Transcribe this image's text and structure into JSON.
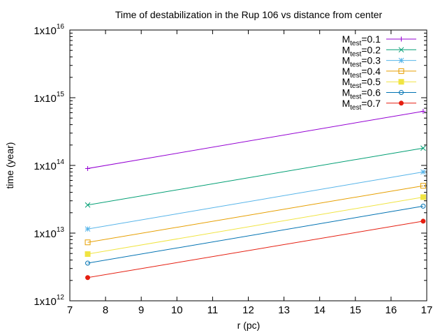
{
  "chart_data": {
    "type": "line",
    "title": "Time of destabilization in the Rup 106 vs distance from center",
    "xlabel": "r (pc)",
    "ylabel": "time (year)",
    "xlim": [
      7,
      17
    ],
    "ylim": [
      1000000000000.0,
      1e+16
    ],
    "yscale": "log",
    "grid": false,
    "legend_position": "top-right",
    "x_ticks": [
      7,
      8,
      9,
      10,
      11,
      12,
      13,
      14,
      15,
      16,
      17
    ],
    "x_tick_labels": [
      "7",
      "8",
      "9",
      "10",
      "11",
      "12",
      "13",
      "14",
      "15",
      "16",
      "17"
    ],
    "y_ticks": [
      {
        "value": 1000000000000.0,
        "base": "1x10",
        "exp": "12"
      },
      {
        "value": 10000000000000.0,
        "base": "1x10",
        "exp": "13"
      },
      {
        "value": 100000000000000.0,
        "base": "1x10",
        "exp": "14"
      },
      {
        "value": 1000000000000000.0,
        "base": "1x10",
        "exp": "15"
      },
      {
        "value": 1e+16,
        "base": "1x10",
        "exp": "16"
      }
    ],
    "series": [
      {
        "name": "M",
        "sub": "test",
        "suffix": "=0.1",
        "color": "#9400d3",
        "marker": "plus",
        "x": [
          7.5,
          16.9
        ],
        "y": [
          90000000000000.0,
          630000000000000.0
        ]
      },
      {
        "name": "M",
        "sub": "test",
        "suffix": "=0.2",
        "color": "#009e73",
        "marker": "cross",
        "x": [
          7.5,
          16.9
        ],
        "y": [
          26000000000000.0,
          180000000000000.0
        ]
      },
      {
        "name": "M",
        "sub": "test",
        "suffix": "=0.3",
        "color": "#56b4e9",
        "marker": "star",
        "x": [
          7.5,
          16.9
        ],
        "y": [
          11500000000000.0,
          80000000000000.0
        ]
      },
      {
        "name": "M",
        "sub": "test",
        "suffix": "=0.4",
        "color": "#e69f00",
        "marker": "open-square",
        "x": [
          7.5,
          16.9
        ],
        "y": [
          7300000000000.0,
          50000000000000.0
        ]
      },
      {
        "name": "M",
        "sub": "test",
        "suffix": "=0.5",
        "color": "#f0e442",
        "marker": "filled-square",
        "x": [
          7.5,
          16.9
        ],
        "y": [
          4900000000000.0,
          34000000000000.0
        ]
      },
      {
        "name": "M",
        "sub": "test",
        "suffix": "=0.6",
        "color": "#0072b2",
        "marker": "open-circle",
        "x": [
          7.5,
          16.9
        ],
        "y": [
          3600000000000.0,
          25000000000000.0
        ]
      },
      {
        "name": "M",
        "sub": "test",
        "suffix": "=0.7",
        "color": "#e51e10",
        "marker": "filled-circle",
        "x": [
          7.5,
          16.9
        ],
        "y": [
          2200000000000.0,
          15000000000000.0
        ]
      }
    ]
  }
}
